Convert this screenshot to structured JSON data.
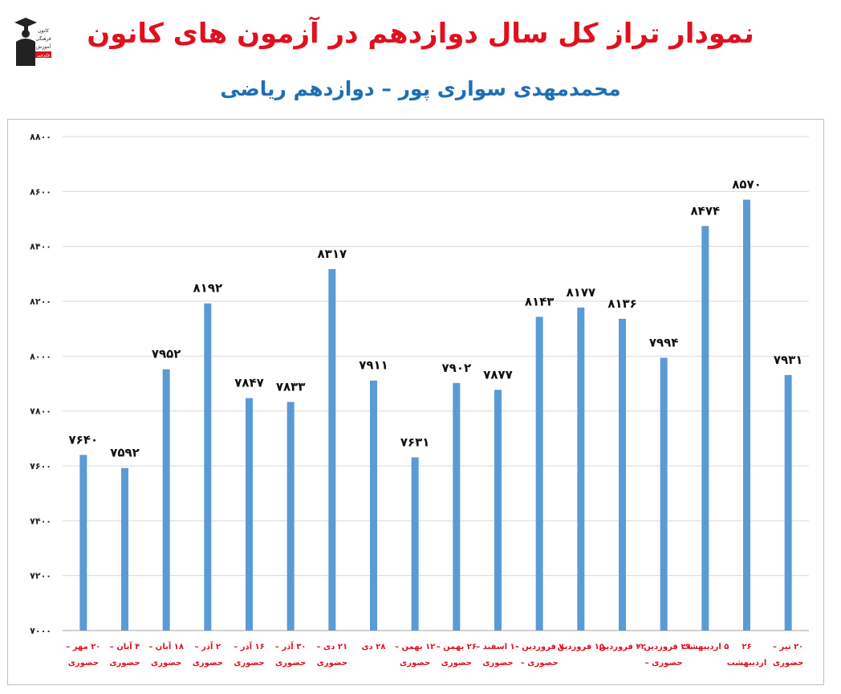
{
  "header": {
    "title": "نمودار تراز کل سال دوازدهم در آزمون های کانون",
    "subtitle": "محمدمهدی سواری پور – دوازدهم ریاضی"
  },
  "logo": {
    "lines": [
      "کانون",
      "فرهنگی",
      "آموزش"
    ],
    "badge": "قلم‌چی"
  },
  "colors": {
    "bar": "#5b9bd5",
    "title": "#e0101e",
    "subtitle": "#1f6fb5",
    "xlabel": "#e0101e",
    "grid": "#d9d9d9"
  },
  "chart_data": {
    "type": "bar",
    "title": "نمودار تراز کل سال دوازدهم در آزمون های کانون",
    "subtitle": "محمدمهدی سواری پور – دوازدهم ریاضی",
    "categories": [
      [
        "۲۰ مهر –",
        "حضوری"
      ],
      [
        "۴ آبان –",
        "حضوری"
      ],
      [
        "۱۸ آبان –",
        "حضوری"
      ],
      [
        "۲ آذر –",
        "حضوری"
      ],
      [
        "۱۶ آذر –",
        "حضوری"
      ],
      [
        "۳۰ آذر –",
        "حضوری"
      ],
      [
        "۲۱ دی –",
        "حضوری"
      ],
      [
        "۲۸ دی",
        ""
      ],
      [
        "۱۲ بهمن –",
        "حضوری"
      ],
      [
        "۲۶ بهمن –",
        "حضوری"
      ],
      [
        "۱۰ اسفند –",
        "حضوری"
      ],
      [
        "۷ فروردین –",
        "حضوری –"
      ],
      [
        "۱۵ فروردین",
        ""
      ],
      [
        "۲۲ فروردین",
        ""
      ],
      [
        "۲۹ فروردین –",
        "حضوری –"
      ],
      [
        "۵ اردیبهشت",
        ""
      ],
      [
        "۲۶",
        "اردیبهشت"
      ],
      [
        "۲۰ تیر –",
        "حضوری"
      ]
    ],
    "values": [
      7640,
      7592,
      7952,
      8192,
      7847,
      7833,
      8317,
      7911,
      7631,
      7902,
      7877,
      8143,
      8177,
      8136,
      7994,
      8474,
      8570,
      7931
    ],
    "value_labels": [
      "۷۶۴۰",
      "۷۵۹۲",
      "۷۹۵۲",
      "۸۱۹۲",
      "۷۸۴۷",
      "۷۸۳۳",
      "۸۳۱۷",
      "۷۹۱۱",
      "۷۶۳۱",
      "۷۹۰۲",
      "۷۸۷۷",
      "۸۱۴۳",
      "۸۱۷۷",
      "۸۱۳۶",
      "۷۹۹۴",
      "۸۴۷۴",
      "۸۵۷۰",
      "۷۹۳۱"
    ],
    "ylim": [
      7000,
      8800
    ],
    "yticks": [
      7000,
      7200,
      7400,
      7600,
      7800,
      8000,
      8200,
      8400,
      8600,
      8800
    ],
    "ytick_labels": [
      "۷۰۰۰",
      "۷۲۰۰",
      "۷۴۰۰",
      "۷۶۰۰",
      "۷۸۰۰",
      "۸۰۰۰",
      "۸۲۰۰",
      "۸۴۰۰",
      "۸۶۰۰",
      "۸۸۰۰"
    ],
    "grid": true,
    "legend": "none"
  }
}
